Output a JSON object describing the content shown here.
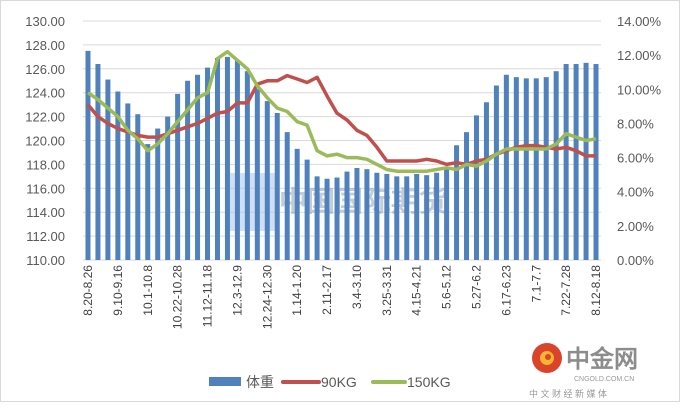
{
  "chart_data": {
    "type": "bar+line",
    "title": "",
    "xlabel": "",
    "ylabel": "",
    "y_left": {
      "range": [
        110,
        130
      ],
      "ticks": [
        "110.00",
        "112.00",
        "114.00",
        "116.00",
        "118.00",
        "120.00",
        "122.00",
        "124.00",
        "126.00",
        "128.00",
        "130.00"
      ]
    },
    "y_right": {
      "range": [
        0,
        14
      ],
      "ticks": [
        "0.00%",
        "2.00%",
        "4.00%",
        "6.00%",
        "8.00%",
        "10.00%",
        "12.00%",
        "14.00%"
      ]
    },
    "grid": true,
    "legend_position": "bottom",
    "tick_labels": [
      "8.20-8.26",
      "9.10-9.16",
      "10.1-10.8",
      "10.22-10.28",
      "11.12-11.18",
      "12.3-12.9",
      "12.24-12.30",
      "1.14-1.20",
      "2.11-2.17",
      "3.4-3.10",
      "3.25-3.31",
      "4.15-4.21",
      "5.6-5.12",
      "5.27-6.2",
      "6.17-6.23",
      "7.1-7.7",
      "7.22-7.28",
      "8.12-8.18"
    ],
    "tick_every": 3,
    "series": [
      {
        "name": "体重",
        "kind": "bar",
        "axis": "left",
        "color": "#4f81bd",
        "values": [
          127.5,
          126.4,
          125.1,
          124.1,
          123.1,
          122.2,
          119.7,
          121.0,
          122.0,
          123.9,
          125.0,
          125.5,
          126.1,
          126.9,
          127.0,
          126.7,
          125.8,
          124.3,
          123.3,
          122.3,
          120.7,
          119.3,
          118.4,
          117.0,
          116.8,
          116.9,
          117.4,
          117.7,
          117.6,
          117.3,
          117.2,
          117.0,
          117.0,
          117.2,
          117.1,
          117.3,
          117.6,
          119.6,
          120.7,
          122.1,
          123.2,
          124.6,
          125.5,
          125.3,
          125.2,
          125.2,
          125.3,
          125.8,
          126.4,
          126.4,
          126.5,
          126.4
        ]
      },
      {
        "name": "90KG",
        "kind": "line",
        "axis": "right",
        "color": "#c0504d",
        "values": [
          9.1,
          8.4,
          8.0,
          7.7,
          7.5,
          7.3,
          7.2,
          7.2,
          7.4,
          7.6,
          7.8,
          8.0,
          8.3,
          8.6,
          8.7,
          9.2,
          9.2,
          10.3,
          10.5,
          10.5,
          10.8,
          10.6,
          10.4,
          10.7,
          9.6,
          8.6,
          8.2,
          7.6,
          7.3,
          6.6,
          5.8,
          5.8,
          5.8,
          5.8,
          5.9,
          5.8,
          5.6,
          5.7,
          5.6,
          5.8,
          5.9,
          6.2,
          6.4,
          6.6,
          6.7,
          6.7,
          6.6,
          6.5,
          6.6,
          6.4,
          6.1,
          6.1
        ]
      },
      {
        "name": "150KG",
        "kind": "line",
        "axis": "right",
        "color": "#9bbb59",
        "values": [
          9.8,
          9.4,
          8.9,
          8.4,
          7.6,
          7.1,
          6.4,
          6.8,
          7.4,
          8.1,
          8.8,
          9.5,
          9.8,
          11.8,
          12.2,
          11.7,
          11.2,
          10.2,
          9.5,
          8.9,
          8.7,
          8.1,
          7.9,
          6.4,
          6.1,
          6.2,
          6.0,
          6.0,
          5.9,
          5.6,
          5.3,
          5.2,
          5.2,
          5.2,
          5.2,
          5.3,
          5.4,
          5.3,
          5.6,
          5.5,
          5.8,
          6.2,
          6.5,
          6.5,
          6.5,
          6.5,
          6.5,
          6.8,
          7.4,
          7.2,
          7.0,
          7.1
        ]
      }
    ]
  },
  "watermark": {
    "text": "中国国际期货",
    "sub": "CIFCO"
  },
  "logo": {
    "title": "中金网",
    "sub": "CNGOLD.COM.CN",
    "tagline": "中 文 财 经 新 媒 体"
  }
}
